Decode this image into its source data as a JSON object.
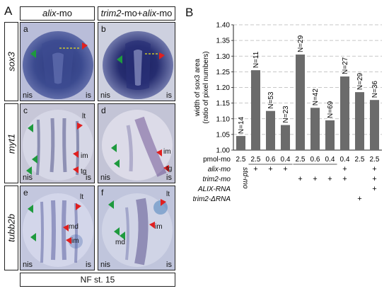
{
  "panel_a": {
    "letter": "A",
    "col_headers": [
      {
        "gene": "alix",
        "suffix": "-mo"
      },
      {
        "prefix": "trim2",
        "mid": "-mo+",
        "gene": "alix",
        "suffix": "-mo"
      }
    ],
    "row_labels": [
      "sox3",
      "myt1",
      "tubb2b"
    ],
    "cells": [
      {
        "id": "a",
        "tags": [
          "nis",
          "is"
        ],
        "labels": []
      },
      {
        "id": "b",
        "tags": [
          "nis",
          "is"
        ],
        "labels": []
      },
      {
        "id": "c",
        "tags": [
          "nis",
          "is"
        ],
        "labels": [
          "lt",
          "im",
          "tg"
        ]
      },
      {
        "id": "d",
        "tags": [
          "nis",
          "is"
        ],
        "labels": [
          "im",
          "tg"
        ]
      },
      {
        "id": "e",
        "tags": [
          "nis",
          "is"
        ],
        "labels": [
          "lt",
          "md",
          "im"
        ]
      },
      {
        "id": "f",
        "tags": [
          "nis",
          "is"
        ],
        "labels": [
          "lt",
          "md",
          "im"
        ]
      }
    ],
    "footer": "NF st. 15"
  },
  "panel_b": {
    "letter": "B"
  },
  "chart_data": {
    "type": "bar",
    "ylabel_line1": "width of sox3 area",
    "ylabel_line2": "(ratio of pixel numbers)",
    "ylim": [
      1.0,
      1.4
    ],
    "yticks": [
      "1.00",
      "1.05",
      "1.10",
      "1.15",
      "1.20",
      "1.25",
      "1.30",
      "1.35",
      "1.40"
    ],
    "grid": "dashed-horizontal",
    "bar_color": "#6b6b6b",
    "values": [
      1.045,
      1.255,
      1.125,
      1.08,
      1.305,
      1.135,
      1.095,
      1.235,
      1.185,
      1.16
    ],
    "n_labels": [
      "N=14",
      "N=11",
      "N=53",
      "N=23",
      "N=29",
      "N=42",
      "N=69",
      "N=27",
      "N=29",
      "N=36"
    ],
    "dose_row_label": "pmol-mo",
    "doses": [
      "2.5",
      "2.5",
      "0.6",
      "0.4",
      "2.5",
      "0.6",
      "0.4",
      "0.4",
      "2.5",
      "2.5"
    ],
    "std_mo_label": "std-mo",
    "conditions": [
      {
        "label": "alix-mo",
        "marks": [
          false,
          true,
          true,
          true,
          false,
          false,
          false,
          true,
          false,
          true
        ]
      },
      {
        "label": "trim2-mo",
        "marks": [
          false,
          false,
          false,
          false,
          true,
          true,
          true,
          true,
          false,
          true
        ]
      },
      {
        "label": "ALIX-RNA",
        "marks": [
          false,
          false,
          false,
          false,
          false,
          false,
          false,
          false,
          false,
          true
        ]
      },
      {
        "label": "trim2-ΔRNA",
        "marks": [
          false,
          false,
          false,
          false,
          false,
          false,
          false,
          false,
          true,
          false
        ]
      }
    ]
  }
}
